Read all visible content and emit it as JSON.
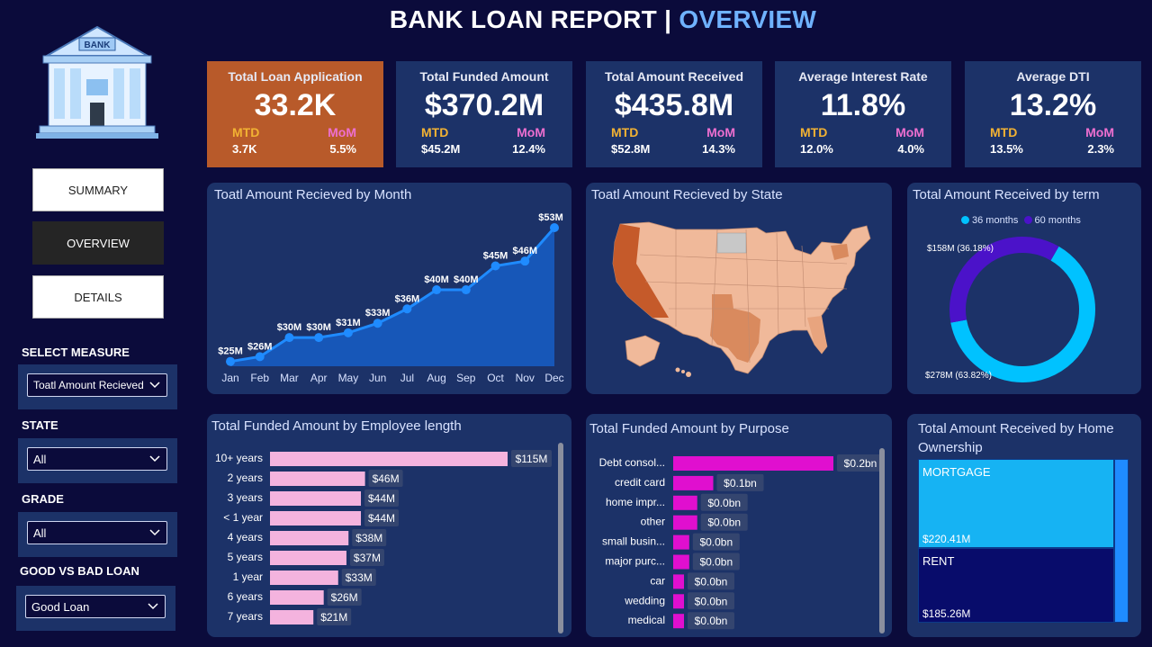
{
  "header": {
    "title": "BANK LOAN REPORT | ",
    "title_highlight": "OVERVIEW"
  },
  "logo": {
    "text": "BANK"
  },
  "kpis": [
    {
      "title": "Total Loan Application",
      "value": "33.2K",
      "mtd_label": "MTD",
      "mom_label": "MoM",
      "mtd": "3.7K",
      "mom": "5.5%"
    },
    {
      "title": "Total Funded Amount",
      "value": "$370.2M",
      "mtd_label": "MTD",
      "mom_label": "MoM",
      "mtd": "$45.2M",
      "mom": "12.4%"
    },
    {
      "title": "Total Amount Received",
      "value": "$435.8M",
      "mtd_label": "MTD",
      "mom_label": "MoM",
      "mtd": "$52.8M",
      "mom": "14.3%"
    },
    {
      "title": "Average Interest Rate",
      "value": "11.8%",
      "mtd_label": "MTD",
      "mom_label": "MoM",
      "mtd": "12.0%",
      "mom": "4.0%"
    },
    {
      "title": "Average DTI",
      "value": "13.2%",
      "mtd_label": "MTD",
      "mom_label": "MoM",
      "mtd": "13.5%",
      "mom": "2.3%"
    }
  ],
  "nav": {
    "summary": "SUMMARY",
    "overview": "OVERVIEW",
    "details": "DETAILS"
  },
  "filters": {
    "measure": {
      "label": "SELECT MEASURE",
      "value": "Toatl Amount Recieved"
    },
    "state": {
      "label": "STATE",
      "value": "All"
    },
    "grade": {
      "label": "GRADE",
      "value": "All"
    },
    "loan": {
      "label": "GOOD VS BAD LOAN",
      "value": "Good Loan"
    }
  },
  "cards": {
    "month": "Toatl Amount Recieved by Month",
    "state": "Toatl Amount Recieved by State",
    "term": "Total Amount Received by term",
    "emp": "Total Funded Amount by Employee length",
    "purpose": "Total Funded Amount by Purpose",
    "home": "Total Amount Received by Home Ownership"
  },
  "colors": {
    "kpi_bg": "#1c3268",
    "kpi_highlight": "#b85a2a",
    "line": "#1f8bff",
    "area": "#1757b8",
    "emp_bar": "#f4b3de",
    "purpose_bar": "#e00fcf",
    "term_36": "#00c2ff",
    "term_60": "#4b12c9",
    "mortgage": "#16b3f3",
    "rent": "#080c6b"
  },
  "chart_data": [
    {
      "type": "area",
      "title": "Toatl Amount Recieved by Month",
      "categories": [
        "Jan",
        "Feb",
        "Mar",
        "Apr",
        "May",
        "Jun",
        "Jul",
        "Aug",
        "Sep",
        "Oct",
        "Nov",
        "Dec"
      ],
      "values": [
        25,
        26,
        30,
        30,
        31,
        33,
        36,
        40,
        40,
        45,
        46,
        53
      ],
      "labels": [
        "$25M",
        "$26M",
        "$30M",
        "$30M",
        "$31M",
        "$33M",
        "$36M",
        "$40M",
        "$40M",
        "$45M",
        "$46M",
        "$53M"
      ]
    },
    {
      "type": "pie",
      "title": "Total Amount Received by term",
      "series": [
        {
          "name": "36 months",
          "value": 278,
          "label": "$278M (63.82%)"
        },
        {
          "name": "60 months",
          "value": 158,
          "label": "$158M (36.18%)"
        }
      ]
    },
    {
      "type": "bar",
      "title": "Total Funded Amount by Employee length",
      "categories": [
        "10+ years",
        "2 years",
        "3 years",
        "< 1 year",
        "4 years",
        "5 years",
        "1 year",
        "6 years",
        "7 years"
      ],
      "values": [
        115,
        46,
        44,
        44,
        38,
        37,
        33,
        26,
        21
      ],
      "labels": [
        "$115M",
        "$46M",
        "$44M",
        "$44M",
        "$38M",
        "$37M",
        "$33M",
        "$26M",
        "$21M"
      ]
    },
    {
      "type": "bar",
      "title": "Total Funded Amount by Purpose",
      "categories": [
        "Debt consol...",
        "credit card",
        "home impr...",
        "other",
        "small busin...",
        "major purc...",
        "car",
        "wedding",
        "medical"
      ],
      "values": [
        0.2,
        0.05,
        0.03,
        0.03,
        0.02,
        0.02,
        0.01,
        0.01,
        0.01
      ],
      "labels": [
        "$0.2bn",
        "$0.1bn",
        "$0.0bn",
        "$0.0bn",
        "$0.0bn",
        "$0.0bn",
        "$0.0bn",
        "$0.0bn",
        "$0.0bn"
      ]
    },
    {
      "type": "heatmap",
      "title": "Total Amount Received by Home Ownership",
      "series": [
        {
          "name": "MORTGAGE",
          "value": 220.41,
          "label": "$220.41M"
        },
        {
          "name": "RENT",
          "value": 185.26,
          "label": "$185.26M"
        }
      ]
    }
  ]
}
